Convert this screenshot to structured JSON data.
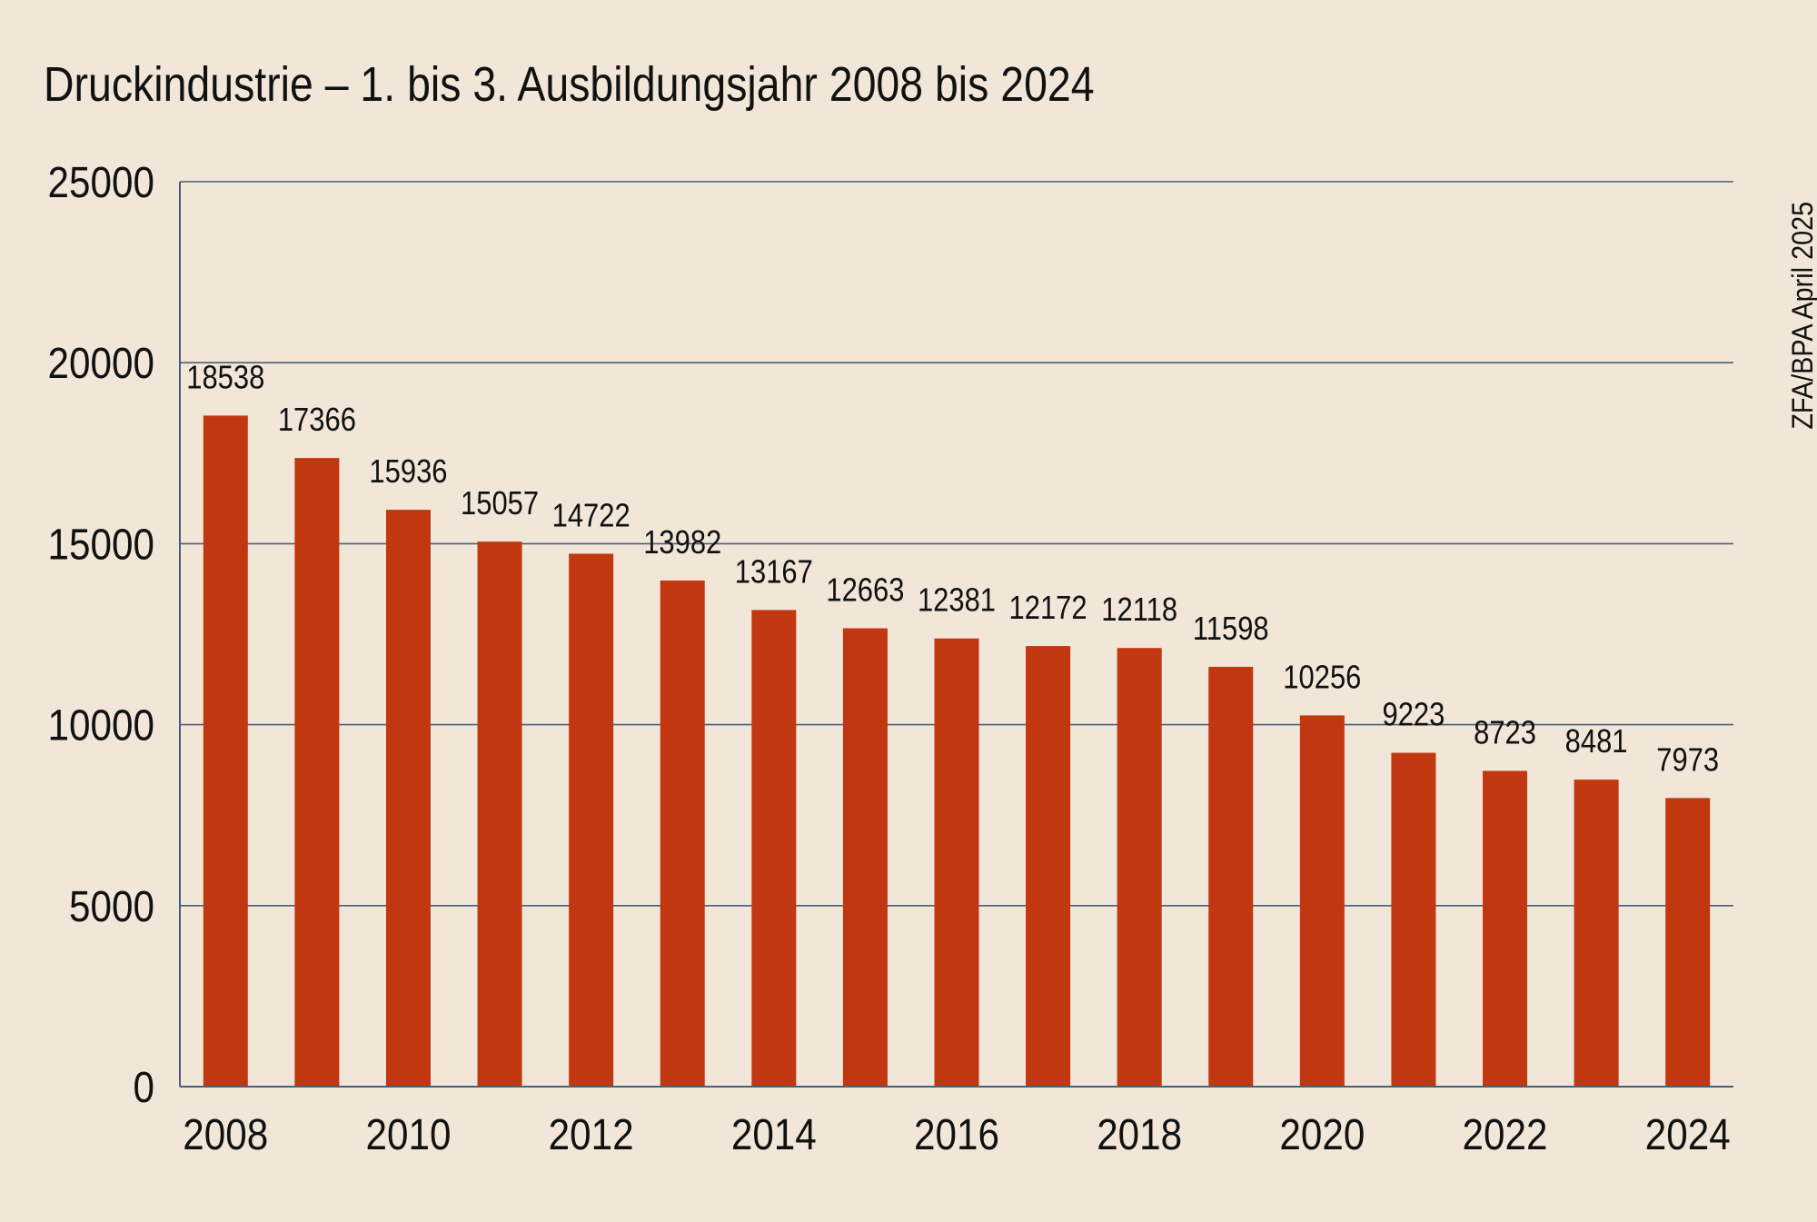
{
  "chart_data": {
    "type": "bar",
    "title": "Druckindustrie – 1. bis 3. Ausbildungsjahr 2008 bis 2024",
    "source_note": "ZFA/BPA April 2025",
    "categories": [
      "2008",
      "2009",
      "2010",
      "2011",
      "2012",
      "2013",
      "2014",
      "2015",
      "2016",
      "2017",
      "2018",
      "2019",
      "2020",
      "2021",
      "2022",
      "2023",
      "2024"
    ],
    "values": [
      18538,
      17366,
      15936,
      15057,
      14722,
      13982,
      13167,
      12663,
      12381,
      12172,
      12118,
      11598,
      10256,
      9223,
      8723,
      8481,
      7973
    ],
    "x_tick_labels": [
      "2008",
      "2010",
      "2012",
      "2014",
      "2016",
      "2018",
      "2020",
      "2022",
      "2024"
    ],
    "y_ticks": [
      0,
      5000,
      10000,
      15000,
      20000,
      25000
    ],
    "ylim": [
      0,
      25000
    ],
    "xlabel": "",
    "ylabel": "",
    "grid": true,
    "bar_color": "#c1370f",
    "grid_color": "#4a5f78",
    "background_color": "#f2e6d9"
  }
}
